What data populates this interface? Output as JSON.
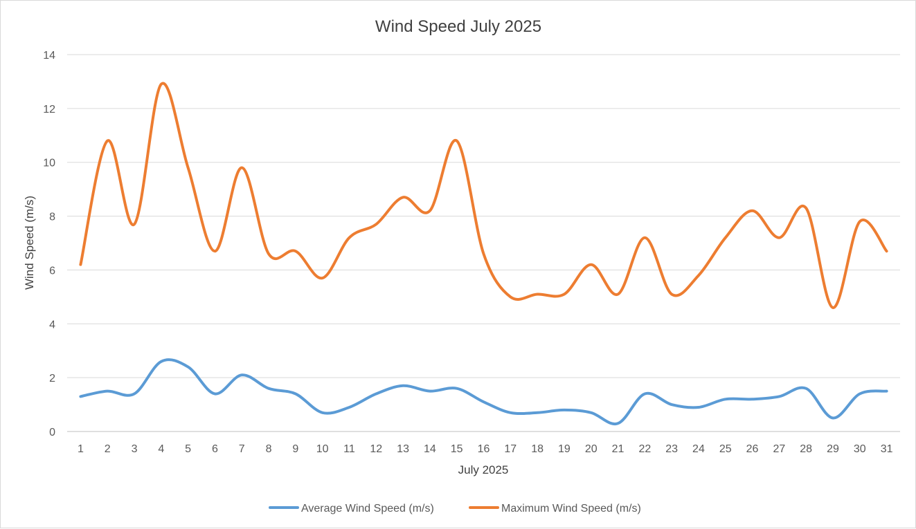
{
  "chart_data": {
    "type": "line",
    "title": "Wind Speed July 2025",
    "xlabel": "July 2025",
    "ylabel": "Wind Speed (m/s)",
    "ylim": [
      0,
      14
    ],
    "yticks": [
      0,
      2,
      4,
      6,
      8,
      10,
      12,
      14
    ],
    "grid": true,
    "legend_position": "bottom",
    "categories": [
      "1",
      "2",
      "3",
      "4",
      "5",
      "6",
      "7",
      "8",
      "9",
      "10",
      "11",
      "12",
      "13",
      "14",
      "15",
      "16",
      "17",
      "18",
      "19",
      "20",
      "21",
      "22",
      "23",
      "24",
      "25",
      "26",
      "27",
      "28",
      "29",
      "30",
      "31"
    ],
    "series": [
      {
        "name": "Average Wind Speed (m/s)",
        "color": "#5b9bd5",
        "values": [
          1.3,
          1.5,
          1.4,
          2.6,
          2.4,
          1.4,
          2.1,
          1.6,
          1.4,
          0.7,
          0.9,
          1.4,
          1.7,
          1.5,
          1.6,
          1.1,
          0.7,
          0.7,
          0.8,
          0.7,
          0.3,
          1.4,
          1.0,
          0.9,
          1.2,
          1.2,
          1.3,
          1.6,
          0.5,
          1.4,
          1.5
        ]
      },
      {
        "name": "Maximum Wind Speed (m/s)",
        "color": "#ed7d31",
        "values": [
          6.2,
          10.8,
          7.7,
          12.9,
          9.8,
          6.7,
          9.8,
          6.6,
          6.7,
          5.7,
          7.2,
          7.7,
          8.7,
          8.2,
          10.8,
          6.6,
          5.0,
          5.1,
          5.1,
          6.2,
          5.1,
          7.2,
          5.1,
          5.8,
          7.2,
          8.2,
          7.2,
          8.3,
          4.6,
          7.8,
          6.7
        ]
      }
    ]
  }
}
